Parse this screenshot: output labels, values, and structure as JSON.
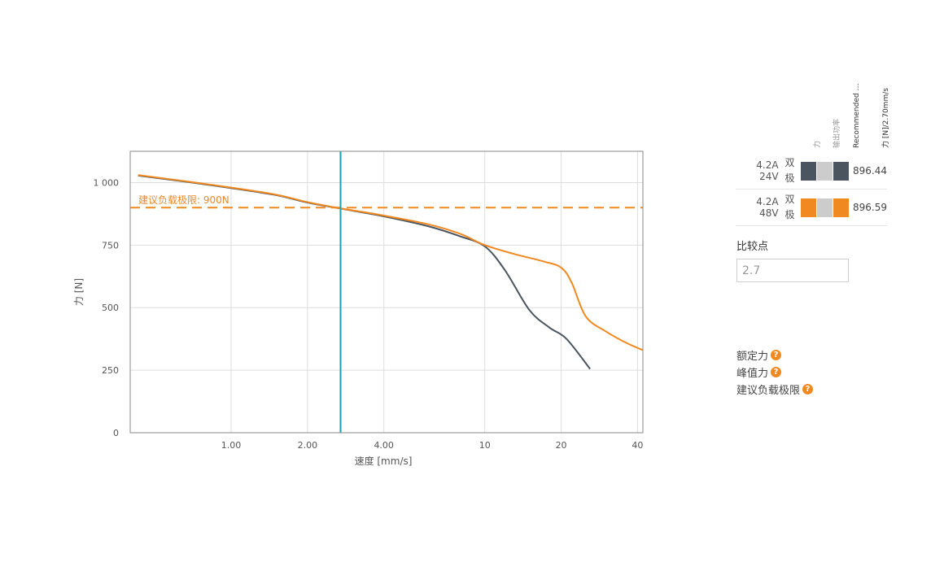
{
  "chart_data": {
    "type": "line",
    "xlabel": "速度 [mm/s]",
    "ylabel": "力 [N]",
    "x_scale": "log",
    "xlim": [
      0.4,
      42
    ],
    "ylim": [
      0,
      1125
    ],
    "x_ticks": [
      {
        "value": 1,
        "label": "1.00"
      },
      {
        "value": 2,
        "label": "2.00"
      },
      {
        "value": 4,
        "label": "4.00"
      },
      {
        "value": 10,
        "label": "10"
      },
      {
        "value": 20,
        "label": "20"
      },
      {
        "value": 40,
        "label": "40"
      }
    ],
    "y_ticks": [
      {
        "value": 0,
        "label": "0"
      },
      {
        "value": 250,
        "label": "250"
      },
      {
        "value": 500,
        "label": "500"
      },
      {
        "value": 750,
        "label": "750"
      },
      {
        "value": 1000,
        "label": "1 000"
      }
    ],
    "grid": true,
    "series": [
      {
        "name": "4.2A 24V 双极",
        "color": "#4a5560",
        "x": [
          0.43,
          0.7,
          1.0,
          1.5,
          2.0,
          2.7,
          4.0,
          6.0,
          8.0,
          10.0,
          12.0,
          15.0,
          18.0,
          21.0,
          26.0
        ],
        "y": [
          1028,
          1000,
          978,
          950,
          920,
          896,
          865,
          825,
          785,
          745,
          650,
          490,
          420,
          375,
          255
        ]
      },
      {
        "name": "4.2A 48V 双极",
        "color": "#f0891f",
        "x": [
          0.43,
          0.7,
          1.0,
          1.5,
          2.0,
          2.7,
          4.0,
          6.0,
          8.0,
          10.0,
          13.0,
          17.0,
          20.0,
          22.0,
          25.0,
          30.0,
          36.0,
          42.0
        ],
        "y": [
          1030,
          1002,
          980,
          952,
          922,
          897,
          868,
          833,
          795,
          750,
          715,
          685,
          660,
          600,
          465,
          405,
          360,
          330
        ]
      }
    ],
    "reference_line": {
      "value": 900,
      "label": "建议负载极限: 900N",
      "color": "#f0891f"
    },
    "compare_line": {
      "value": 2.7,
      "color": "#1aa0b5"
    }
  },
  "legend": {
    "column_headers": [
      "力",
      "输出功率",
      "Recommended l...",
      "力 [N]/2.70mm/s"
    ],
    "rows": [
      {
        "label": "4.2A  24V",
        "type": "双极",
        "colors": [
          "#4a5560",
          "#cccccc",
          "#4a5560"
        ],
        "value": "896.44"
      },
      {
        "label": "4.2A  48V",
        "type": "双极",
        "colors": [
          "#f0891f",
          "#cccccc",
          "#f0891f"
        ],
        "value": "896.59"
      }
    ]
  },
  "compare": {
    "title": "比较点",
    "value": "2.7"
  },
  "info": [
    {
      "label": "额定力",
      "icon": "help-icon",
      "glyph": "?"
    },
    {
      "label": "峰值力",
      "icon": "help-icon",
      "glyph": "?"
    },
    {
      "label": "建议负载极限",
      "icon": "help-icon",
      "glyph": "?"
    }
  ]
}
